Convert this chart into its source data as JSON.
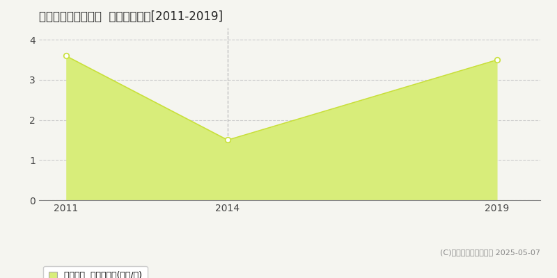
{
  "title": "薩摩郡さつま町時吉  土地価格推移[2011-2019]",
  "years": [
    2011,
    2014,
    2019
  ],
  "values": [
    3.6,
    1.5,
    3.5
  ],
  "line_color": "#c8e03a",
  "fill_color": "#d8ed7a",
  "fill_alpha": 1.0,
  "marker_color": "white",
  "marker_edge_color": "#c8e03a",
  "xlim": [
    2010.5,
    2019.8
  ],
  "ylim": [
    0,
    4.3
  ],
  "yticks": [
    0,
    1,
    2,
    3,
    4
  ],
  "xticks": [
    2011,
    2014,
    2019
  ],
  "grid_color": "#cccccc",
  "vline_color": "#bbbbbb",
  "vline_x": 2014,
  "background_color": "#f5f5f0",
  "plot_bg_color": "#f5f5f0",
  "legend_label": "土地価格  平均坪単価(万円/坪)",
  "copyright_text": "(C)土地価格ドットコム 2025-05-07",
  "title_fontsize": 12,
  "axis_fontsize": 10,
  "legend_fontsize": 9,
  "copyright_fontsize": 8
}
